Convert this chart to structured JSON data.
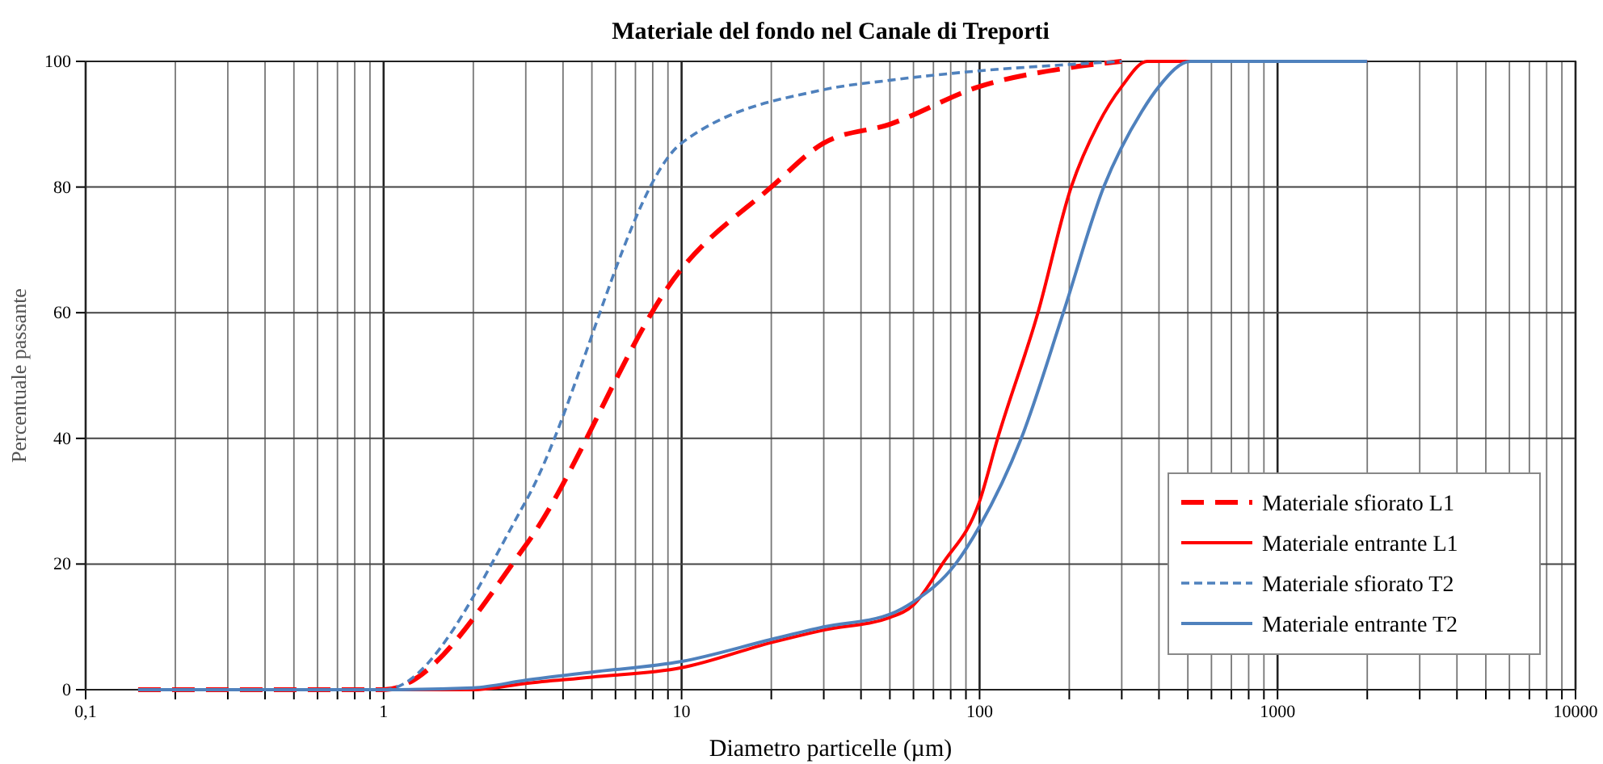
{
  "chart_data": {
    "type": "line",
    "title": "Materiale del fondo nel Canale di Treporti",
    "xlabel": "Diametro particelle (µm)",
    "ylabel": "Percentuale passante",
    "log": "x",
    "grid": true,
    "legend": "bottom right",
    "marker": "none",
    "xlim": [
      0.1,
      10000
    ],
    "ylim": [
      0,
      100
    ],
    "xticks": [
      {
        "value": 0.1,
        "label": "0,1"
      },
      {
        "value": 0.2,
        "label": null
      },
      {
        "value": 0.3,
        "label": null
      },
      {
        "value": 0.4,
        "label": null
      },
      {
        "value": 0.5,
        "label": null
      },
      {
        "value": 0.6,
        "label": null
      },
      {
        "value": 0.7,
        "label": null
      },
      {
        "value": 0.8,
        "label": null
      },
      {
        "value": 0.9,
        "label": null
      },
      1,
      {
        "value": 2,
        "label": null
      },
      {
        "value": 3,
        "label": null
      },
      {
        "value": 4,
        "label": null
      },
      {
        "value": 5,
        "label": null
      },
      {
        "value": 6,
        "label": null
      },
      {
        "value": 7,
        "label": null
      },
      {
        "value": 8,
        "label": null
      },
      {
        "value": 9,
        "label": null
      },
      10,
      {
        "value": 20,
        "label": null
      },
      {
        "value": 30,
        "label": null
      },
      {
        "value": 40,
        "label": null
      },
      {
        "value": 50,
        "label": null
      },
      {
        "value": 60,
        "label": null
      },
      {
        "value": 70,
        "label": null
      },
      {
        "value": 80,
        "label": null
      },
      {
        "value": 90,
        "label": null
      },
      100,
      {
        "value": 200,
        "label": null
      },
      {
        "value": 300,
        "label": null
      },
      {
        "value": 400,
        "label": null
      },
      {
        "value": 500,
        "label": null
      },
      {
        "value": 600,
        "label": null
      },
      {
        "value": 700,
        "label": null
      },
      {
        "value": 800,
        "label": null
      },
      {
        "value": 900,
        "label": null
      },
      1000,
      {
        "value": 2000,
        "label": null
      },
      {
        "value": 3000,
        "label": null
      },
      {
        "value": 4000,
        "label": null
      },
      {
        "value": 5000,
        "label": null
      },
      {
        "value": 6000,
        "label": null
      },
      {
        "value": 7000,
        "label": null
      },
      {
        "value": 8000,
        "label": null
      },
      {
        "value": 9000,
        "label": null
      },
      10000
    ],
    "yticks": [
      0,
      20,
      40,
      60,
      80,
      100
    ],
    "series": [
      {
        "name": "Materiale sfiorato L1",
        "color": "#ff0000",
        "line_style": "dashed",
        "x": [
          0.15,
          1,
          3,
          10,
          20,
          30,
          50,
          100,
          200,
          300
        ],
        "values": [
          0,
          0,
          23,
          67,
          80,
          87,
          90,
          96,
          99,
          100
        ]
      },
      {
        "name": "Materiale entrante L1",
        "color": "#ff0000",
        "line_style": "solid",
        "x": [
          0.15,
          1,
          2,
          3,
          5,
          10,
          20,
          30,
          50,
          60,
          75,
          100,
          115,
          157,
          203,
          250,
          300,
          365,
          2000
        ],
        "values": [
          0,
          0,
          0,
          1,
          2,
          3.5,
          7.5,
          9.5,
          11.5,
          13.5,
          20,
          30,
          40,
          60,
          80,
          90,
          96,
          100,
          100
        ]
      },
      {
        "name": "Materiale sfiorato T2",
        "color": "#4f81bd",
        "line_style": "dotted",
        "x": [
          0.15,
          1,
          3,
          10,
          30,
          50,
          100,
          200,
          300
        ],
        "values": [
          0,
          0,
          30,
          87,
          95.5,
          97,
          98.5,
          99.5,
          100
        ]
      },
      {
        "name": "Materiale entrante T2",
        "color": "#4f81bd",
        "line_style": "solid",
        "x": [
          0.15,
          1,
          2,
          3,
          5,
          10,
          20,
          30,
          50,
          60,
          83,
          100,
          138,
          191,
          261,
          350,
          400,
          510,
          2000
        ],
        "values": [
          0,
          0,
          0.3,
          1.5,
          2.8,
          4.5,
          8,
          10,
          12,
          14,
          20,
          26,
          40,
          60,
          80,
          92,
          96,
          100,
          100
        ]
      }
    ]
  }
}
